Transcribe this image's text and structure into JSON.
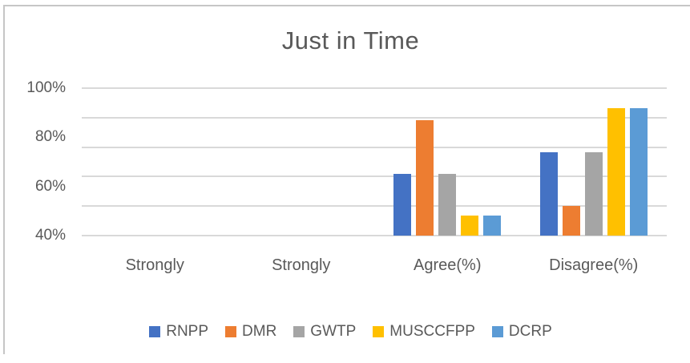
{
  "frame": {
    "border_color": "#c6c6c6",
    "background": "#ffffff"
  },
  "chart_data": {
    "type": "bar",
    "title": "Just in Time",
    "categories": [
      "Strongly",
      "Strongly",
      "Agree(%)",
      "Disagree(%)"
    ],
    "series": [
      {
        "name": "RNPP",
        "color": "#4472C4",
        "values": [
          null,
          null,
          65,
          74
        ]
      },
      {
        "name": "DMR",
        "color": "#ED7D31",
        "values": [
          null,
          null,
          87,
          52
        ]
      },
      {
        "name": "GWTP",
        "color": "#A5A5A5",
        "values": [
          null,
          null,
          65,
          74
        ]
      },
      {
        "name": "MUSCCFPP",
        "color": "#FFC000",
        "values": [
          null,
          null,
          48,
          92
        ]
      },
      {
        "name": "DCRP",
        "color": "#5B9BD5",
        "values": [
          null,
          null,
          48,
          92
        ]
      }
    ],
    "y_axis": {
      "tick_labels": [
        "100%",
        "80%",
        "60%",
        "40%"
      ],
      "tick_values": [
        100,
        80,
        60,
        40
      ],
      "min": 40,
      "max": 100,
      "unit": "%"
    },
    "gridlines": {
      "count": 6,
      "color": "#d9d9d9",
      "on": true
    },
    "legend": {
      "position": "bottom"
    },
    "text_color": "#595959",
    "xlabel": "",
    "ylabel": ""
  }
}
